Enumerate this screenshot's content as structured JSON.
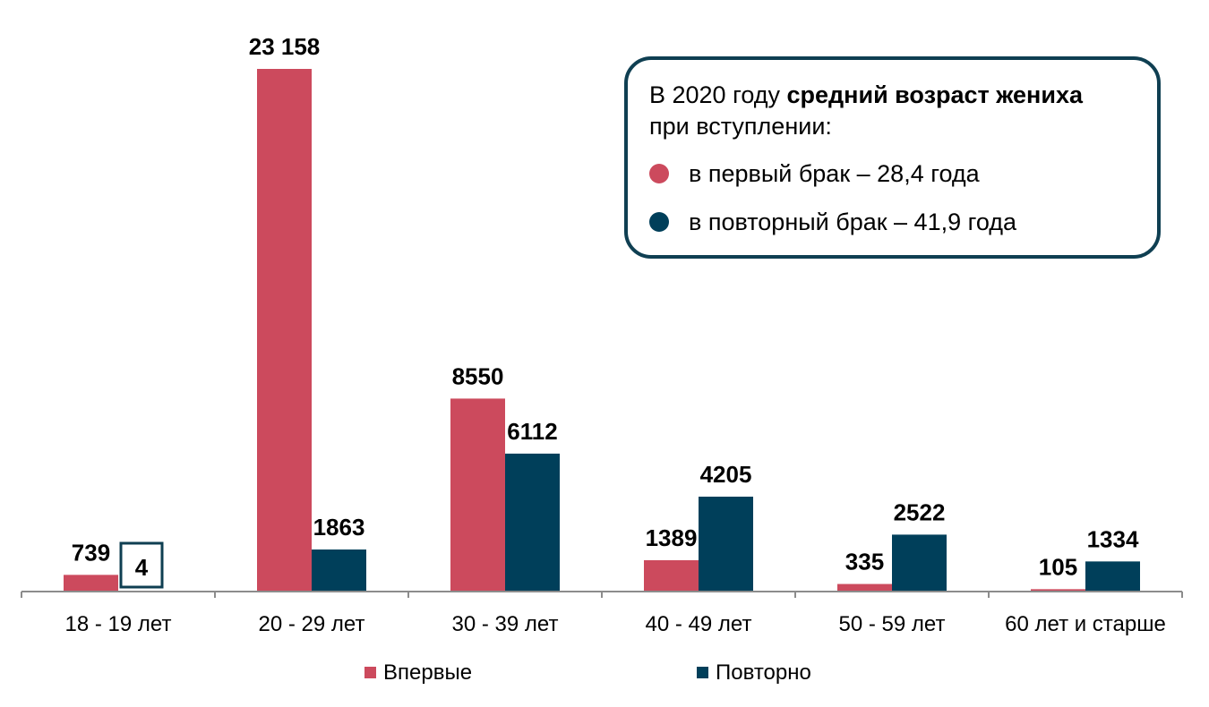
{
  "colors": {
    "first": "#cc4a5d",
    "repeat": "#003f5a",
    "box_border": "#0f3f52"
  },
  "info_box": {
    "title_prefix": "В 2020 году ",
    "title_bold": "средний возраст жениха",
    "title_suffix": "при вступлении:",
    "items": [
      {
        "text": "в первый брак – 28,4 года",
        "color": "#cc4a5d"
      },
      {
        "text": "в повторный брак – 41,9 года",
        "color": "#003f5a"
      }
    ]
  },
  "chart_data": {
    "type": "bar",
    "categories": [
      "18 - 19 лет",
      "20 - 29 лет",
      "30 - 39 лет",
      "40 - 49 лет",
      "50 - 59 лет",
      "60 лет и старше"
    ],
    "series": [
      {
        "name": "Впервые",
        "color": "#cc4a5d",
        "values": [
          739,
          23158,
          8550,
          1389,
          335,
          105
        ],
        "labels": [
          "739",
          "23 158",
          "8550",
          "1389",
          "335",
          "105"
        ]
      },
      {
        "name": "Повторно",
        "color": "#003f5a",
        "values": [
          4,
          1863,
          6112,
          4205,
          2522,
          1334
        ],
        "labels": [
          "4",
          "1863",
          "6112",
          "4205",
          "2522",
          "1334"
        ]
      }
    ],
    "ylim": [
      0,
      23158
    ],
    "legend_position": "bottom",
    "grid": false
  }
}
